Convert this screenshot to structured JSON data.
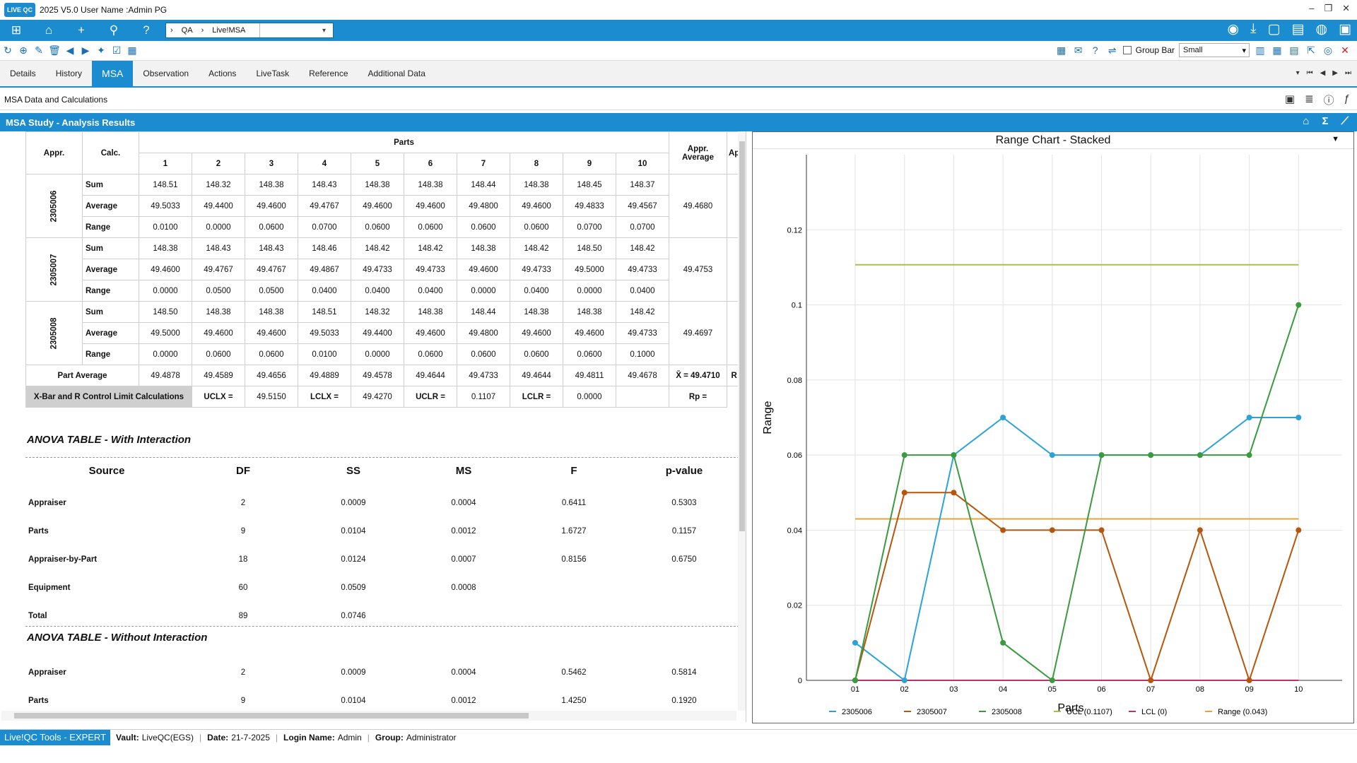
{
  "window": {
    "title": "2025 V5.0  User Name :Admin PG",
    "logo": "LIVE QC"
  },
  "breadcrumb": {
    "items": [
      "QA",
      "Live!MSA"
    ]
  },
  "toolbar": {
    "group_bar_label": "Group Bar",
    "size_value": "Small"
  },
  "tabs": [
    {
      "label": "Details"
    },
    {
      "label": "History"
    },
    {
      "label": "MSA"
    },
    {
      "label": "Observation"
    },
    {
      "label": "Actions"
    },
    {
      "label": "LiveTask"
    },
    {
      "label": "Reference"
    },
    {
      "label": "Additional Data"
    }
  ],
  "subheader": {
    "title": "MSA Data and Calculations"
  },
  "section": {
    "title": "MSA Study - Analysis Results"
  },
  "msa_table": {
    "head_appr": "Appr.",
    "head_calc": "Calc.",
    "head_parts": "Parts",
    "head_appr_avg": "Appr. Average",
    "head_extra": "Ap",
    "part_numbers": [
      "1",
      "2",
      "3",
      "4",
      "5",
      "6",
      "7",
      "8",
      "9",
      "10"
    ],
    "appraisers": [
      {
        "id": "2305006",
        "avg": "49.4680",
        "rows": [
          {
            "calc": "Sum",
            "vals": [
              "148.51",
              "148.32",
              "148.38",
              "148.43",
              "148.38",
              "148.38",
              "148.44",
              "148.38",
              "148.45",
              "148.37"
            ]
          },
          {
            "calc": "Average",
            "vals": [
              "49.5033",
              "49.4400",
              "49.4600",
              "49.4767",
              "49.4600",
              "49.4600",
              "49.4800",
              "49.4600",
              "49.4833",
              "49.4567"
            ]
          },
          {
            "calc": "Range",
            "vals": [
              "0.0100",
              "0.0000",
              "0.0600",
              "0.0700",
              "0.0600",
              "0.0600",
              "0.0600",
              "0.0600",
              "0.0700",
              "0.0700"
            ]
          }
        ]
      },
      {
        "id": "2305007",
        "avg": "49.4753",
        "rows": [
          {
            "calc": "Sum",
            "vals": [
              "148.38",
              "148.43",
              "148.43",
              "148.46",
              "148.42",
              "148.42",
              "148.38",
              "148.42",
              "148.50",
              "148.42"
            ]
          },
          {
            "calc": "Average",
            "vals": [
              "49.4600",
              "49.4767",
              "49.4767",
              "49.4867",
              "49.4733",
              "49.4733",
              "49.4600",
              "49.4733",
              "49.5000",
              "49.4733"
            ]
          },
          {
            "calc": "Range",
            "vals": [
              "0.0000",
              "0.0500",
              "0.0500",
              "0.0400",
              "0.0400",
              "0.0400",
              "0.0000",
              "0.0400",
              "0.0000",
              "0.0400"
            ]
          }
        ]
      },
      {
        "id": "2305008",
        "avg": "49.4697",
        "rows": [
          {
            "calc": "Sum",
            "vals": [
              "148.50",
              "148.38",
              "148.38",
              "148.51",
              "148.32",
              "148.38",
              "148.44",
              "148.38",
              "148.38",
              "148.42"
            ]
          },
          {
            "calc": "Average",
            "vals": [
              "49.5000",
              "49.4600",
              "49.4600",
              "49.5033",
              "49.4400",
              "49.4600",
              "49.4800",
              "49.4600",
              "49.4600",
              "49.4733"
            ]
          },
          {
            "calc": "Range",
            "vals": [
              "0.0000",
              "0.0600",
              "0.0600",
              "0.0100",
              "0.0000",
              "0.0600",
              "0.0600",
              "0.0600",
              "0.0600",
              "0.1000"
            ]
          }
        ]
      }
    ],
    "part_average_label": "Part Average",
    "part_average": [
      "49.4878",
      "49.4589",
      "49.4656",
      "49.4889",
      "49.4578",
      "49.4644",
      "49.4733",
      "49.4644",
      "49.4811",
      "49.4678"
    ],
    "grand_avg": "X̄ = 49.4710",
    "grand_extra": "R",
    "control": {
      "label": "X-Bar and R Control Limit Calculations",
      "uclx_label": "UCLX =",
      "uclx": "49.5150",
      "lclx_label": "LCLX =",
      "lclx": "49.4270",
      "uclr_label": "UCLR =",
      "uclr": "0.1107",
      "lclr_label": "LCLR =",
      "lclr": "0.0000",
      "rp_label": "Rp ="
    }
  },
  "anova_with": {
    "title": "ANOVA TABLE -  With Interaction",
    "headers": [
      "Source",
      "DF",
      "SS",
      "MS",
      "F",
      "p-value"
    ],
    "rows": [
      [
        "Appraiser",
        "2",
        "0.0009",
        "0.0004",
        "0.6411",
        "0.5303"
      ],
      [
        "Parts",
        "9",
        "0.0104",
        "0.0012",
        "1.6727",
        "0.1157"
      ],
      [
        "Appraiser-by-Part",
        "18",
        "0.0124",
        "0.0007",
        "0.8156",
        "0.6750"
      ],
      [
        "Equipment",
        "60",
        "0.0509",
        "0.0008",
        "",
        ""
      ],
      [
        "Total",
        "89",
        "0.0746",
        "",
        "",
        ""
      ]
    ]
  },
  "anova_without": {
    "title": "ANOVA TABLE -  Without Interaction",
    "rows": [
      [
        "Appraiser",
        "2",
        "0.0009",
        "0.0004",
        "0.5462",
        "0.5814"
      ],
      [
        "Parts",
        "9",
        "0.0104",
        "0.0012",
        "1.4250",
        "0.1920"
      ]
    ]
  },
  "chart_data": {
    "type": "line",
    "title": "Range Chart - Stacked",
    "xlabel": "Parts",
    "ylabel": "Range",
    "categories": [
      "01",
      "02",
      "03",
      "04",
      "05",
      "06",
      "07",
      "08",
      "09",
      "10"
    ],
    "ylim": [
      0,
      0.14
    ],
    "yticks": [
      "0",
      "0.02",
      "0.04",
      "0.06",
      "0.08",
      "0.1",
      "0.12"
    ],
    "grid": true,
    "legend_position": "bottom",
    "series": [
      {
        "name": "2305006",
        "color": "#29a3d9",
        "values": [
          0.01,
          0,
          0.06,
          0.07,
          0.06,
          0.06,
          0.06,
          0.06,
          0.07,
          0.07
        ]
      },
      {
        "name": "2305007",
        "color": "#b5560c",
        "values": [
          0,
          0.05,
          0.05,
          0.04,
          0.04,
          0.04,
          0,
          0.04,
          0,
          0.04
        ]
      },
      {
        "name": "2305008",
        "color": "#3a9a3e",
        "values": [
          0,
          0.06,
          0.06,
          0.01,
          0,
          0.06,
          0.06,
          0.06,
          0.06,
          0.1
        ]
      }
    ],
    "limits": [
      {
        "name": "UCL (0.1107)",
        "value": 0.1107,
        "color": "#a6c43a"
      },
      {
        "name": "LCL (0)",
        "value": 0,
        "color": "#c0306a"
      },
      {
        "name": "Range (0.043)",
        "value": 0.043,
        "color": "#f0a22c"
      }
    ]
  },
  "statusbar": {
    "app": "Live!QC Tools - EXPERT",
    "vault_label": "Vault:",
    "vault": "LiveQC(EGS)",
    "date_label": "Date:",
    "date": "21-7-2025",
    "login_label": "Login Name:",
    "login": "Admin",
    "group_label": "Group:",
    "group": "Administrator"
  }
}
